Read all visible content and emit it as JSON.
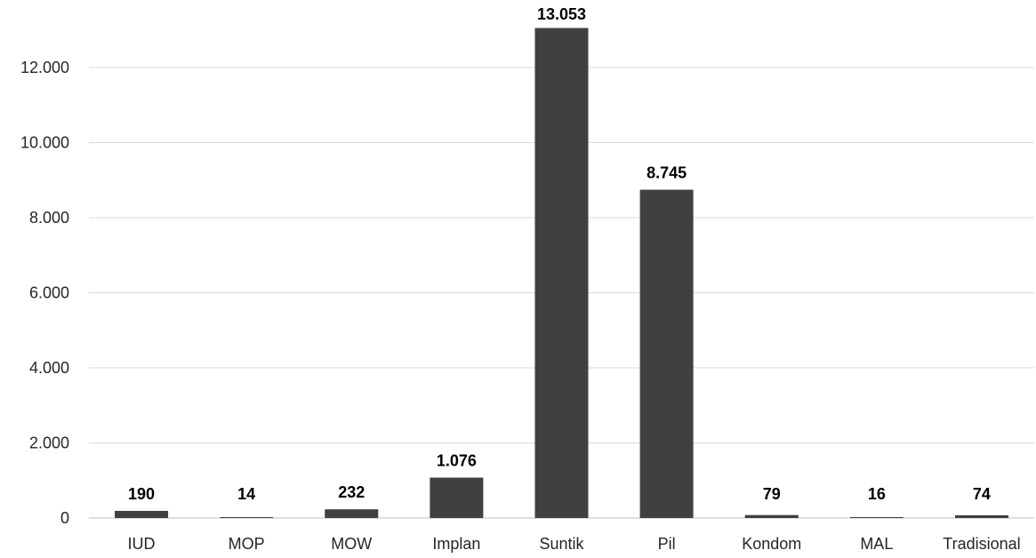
{
  "chart_data": {
    "type": "bar",
    "categories": [
      "IUD",
      "MOP",
      "MOW",
      "Implan",
      "Suntik",
      "Pil",
      "Kondom",
      "MAL",
      "Tradisional"
    ],
    "values": [
      190,
      14,
      232,
      1076,
      13053,
      8745,
      79,
      16,
      74
    ],
    "data_labels": [
      "190",
      "14",
      "232",
      "1.076",
      "13.053",
      "8.745",
      "79",
      "16",
      "74"
    ],
    "yticks": [
      0,
      2000,
      4000,
      6000,
      8000,
      10000,
      12000
    ],
    "ytick_labels": [
      "0",
      "2.000",
      "4.000",
      "6.000",
      "8.000",
      "10.000",
      "12.000"
    ],
    "ylim": [
      0,
      12000
    ],
    "grid": true,
    "legend": "none",
    "bar_color": "#404040"
  }
}
